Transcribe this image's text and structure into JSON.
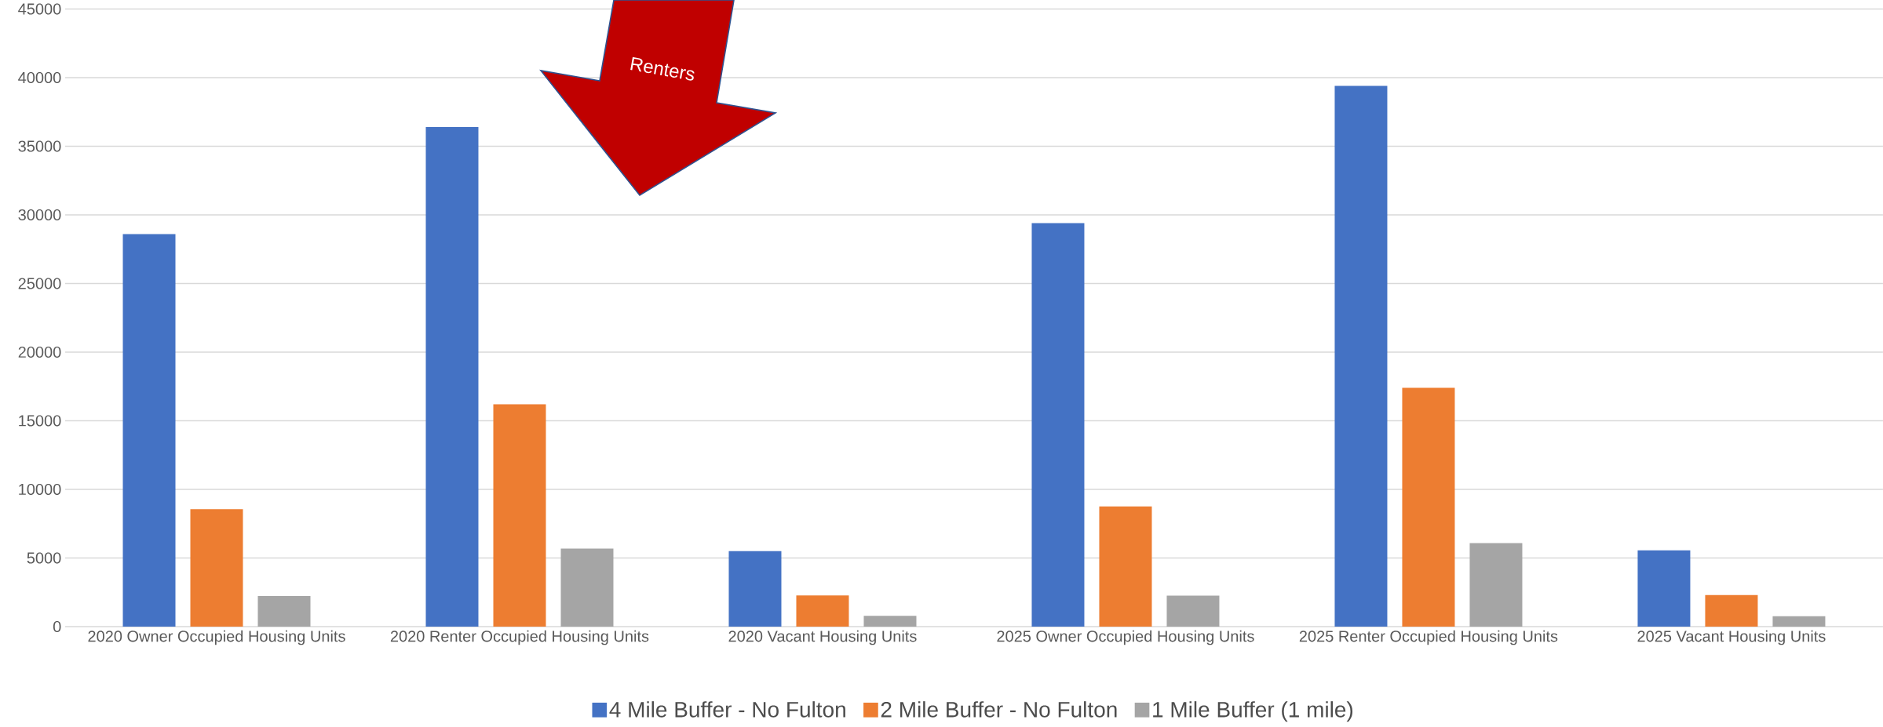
{
  "chart_data": {
    "type": "bar",
    "categories": [
      "2020 Owner Occupied Housing Units",
      "2020 Renter Occupied Housing Units",
      "2020 Vacant Housing Units",
      "2025 Owner Occupied Housing Units",
      "2025 Renter Occupied Housing Units",
      "2025 Vacant Housing Units"
    ],
    "series": [
      {
        "name": "4 Mile Buffer - No Fulton",
        "color": "#4472c4",
        "values": [
          28600,
          36400,
          5500,
          29400,
          39400,
          5550
        ]
      },
      {
        "name": "2 Mile Buffer - No Fulton",
        "color": "#ed7d31",
        "values": [
          8550,
          16200,
          2270,
          8750,
          17400,
          2300
        ]
      },
      {
        "name": "1 Mile Buffer (1 mile)",
        "color": "#a5a5a5",
        "values": [
          2230,
          5680,
          790,
          2250,
          6080,
          750
        ]
      }
    ],
    "ylim": [
      0,
      45000
    ],
    "yticks": [
      0,
      5000,
      10000,
      15000,
      20000,
      25000,
      30000,
      35000,
      40000,
      45000
    ],
    "grid": "y",
    "legend": "bottom",
    "annotations": [
      "Renters"
    ]
  }
}
